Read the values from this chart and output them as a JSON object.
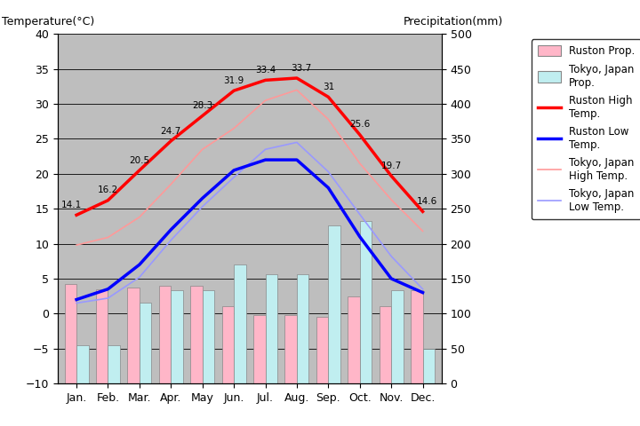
{
  "months": [
    "Jan.",
    "Feb.",
    "Mar.",
    "Apr.",
    "May",
    "Jun.",
    "Jul.",
    "Aug.",
    "Sep.",
    "Oct.",
    "Nov.",
    "Dec."
  ],
  "ruston_high": [
    14.1,
    16.2,
    20.5,
    24.7,
    28.3,
    31.9,
    33.4,
    33.7,
    31.0,
    25.6,
    19.7,
    14.6
  ],
  "ruston_low": [
    2.0,
    3.5,
    7.0,
    12.0,
    16.5,
    20.5,
    22.0,
    22.0,
    18.0,
    11.0,
    5.0,
    3.0
  ],
  "tokyo_high": [
    9.8,
    10.9,
    13.8,
    18.5,
    23.5,
    26.5,
    30.5,
    32.0,
    27.8,
    21.5,
    16.3,
    11.8
  ],
  "tokyo_low": [
    1.5,
    2.2,
    5.2,
    10.5,
    15.3,
    19.5,
    23.5,
    24.5,
    20.3,
    14.2,
    8.2,
    3.5
  ],
  "ruston_high_labels": [
    "14.1",
    "16.2",
    "20.5",
    "24.7",
    "28.3",
    "31.9",
    "33.4",
    "33.7",
    "31",
    "25.6",
    "19.7",
    "14.6"
  ],
  "ruston_bar_top": [
    4.2,
    3.5,
    3.7,
    4.0,
    4.0,
    1.0,
    -0.2,
    -0.2,
    -0.5,
    2.5,
    1.0,
    3.3
  ],
  "tokyo_bar_top": [
    -4.5,
    -4.5,
    1.5,
    3.4,
    3.4,
    7.0,
    5.6,
    5.6,
    12.6,
    13.2,
    3.4,
    -5.0
  ],
  "title_left": "Temperature(°C)",
  "title_right": "Precipitation(mm)",
  "ylim_temp": [
    -10,
    40
  ],
  "ylim_prcp": [
    0,
    500
  ],
  "bar_width": 0.38,
  "ruston_prcp_color": "#FFB6C8",
  "tokyo_prcp_color": "#C0EEF0",
  "ruston_high_color": "#FF0000",
  "ruston_low_color": "#0000FF",
  "tokyo_high_color": "#FF9999",
  "tokyo_low_color": "#9999FF",
  "bg_color": "#BEBEBE",
  "grid_color": "#000000"
}
